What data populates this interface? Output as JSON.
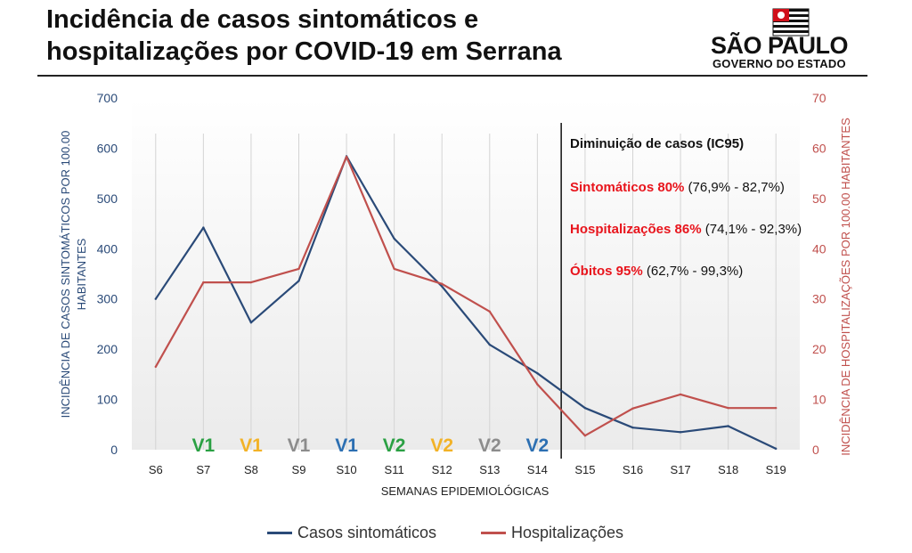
{
  "header": {
    "title_line1": "Incidência de casos sintomáticos e",
    "title_line2": "hospitalizações por COVID-19 em Serrana",
    "logo_line1": "SÃO PAULO",
    "logo_line2": "GOVERNO DO ESTADO"
  },
  "annotation": {
    "heading": "Diminuição de casos (IC95)",
    "rows": [
      {
        "bold": "Sintomáticos 80%",
        "rest": " (76,9% - 82,7%)"
      },
      {
        "bold": "Hospitalizações 86%",
        "rest": " (74,1% - 92,3%)"
      },
      {
        "bold": "Óbitos 95%",
        "rest": " (62,7% - 99,3%)"
      }
    ],
    "highlight_color": "#e8141c"
  },
  "chart_data": {
    "type": "line",
    "x": [
      "S6",
      "S7",
      "S8",
      "S9",
      "S10",
      "S11",
      "S12",
      "S13",
      "S14",
      "S15",
      "S16",
      "S17",
      "S18",
      "S19"
    ],
    "xlabel": "SEMANAS EPIDEMIOLÓGICAS",
    "ylabel_left": "INCIDÊNCIA DE CASOS SINTOMÁTICOS  POR 100.00 HABITANTES",
    "ylabel_right": "INCIDÊNCIA DE HOSPITALIZAÇÕES POR 100.00 HABITANTES",
    "ylim_left": [
      0,
      700
    ],
    "ylim_right": [
      0,
      70
    ],
    "yticks_left": [
      "0",
      "100",
      "200",
      "300",
      "400",
      "500",
      "600",
      "700"
    ],
    "yticks_right": [
      "0",
      "10",
      "20",
      "30",
      "40",
      "50",
      "60",
      "70"
    ],
    "series": [
      {
        "name": "Casos sintomáticos",
        "axis": "left",
        "color": "#2a4a78",
        "values": [
          300,
          442,
          253,
          336,
          584,
          420,
          325,
          209,
          152,
          83,
          44,
          35,
          47,
          2
        ]
      },
      {
        "name": "Hospitalizações",
        "axis": "right",
        "color": "#c0504d",
        "values": [
          16.5,
          33.3,
          33.3,
          36,
          58.3,
          36,
          33,
          27.5,
          13,
          2.8,
          8.2,
          11,
          8.3,
          8.3
        ]
      }
    ],
    "vaccine_labels": [
      {
        "x": "S7",
        "text": "V1",
        "color": "#2aa043"
      },
      {
        "x": "S8",
        "text": "V1",
        "color": "#f2b227"
      },
      {
        "x": "S9",
        "text": "V1",
        "color": "#8c8c8c"
      },
      {
        "x": "S10",
        "text": "V1",
        "color": "#2c6fb2"
      },
      {
        "x": "S11",
        "text": "V2",
        "color": "#2aa043"
      },
      {
        "x": "S12",
        "text": "V2",
        "color": "#f2b227"
      },
      {
        "x": "S13",
        "text": "V2",
        "color": "#8c8c8c"
      },
      {
        "x": "S14",
        "text": "V2",
        "color": "#2c6fb2"
      }
    ],
    "divider_between": [
      "S14",
      "S15"
    ],
    "grid": "vertical"
  }
}
